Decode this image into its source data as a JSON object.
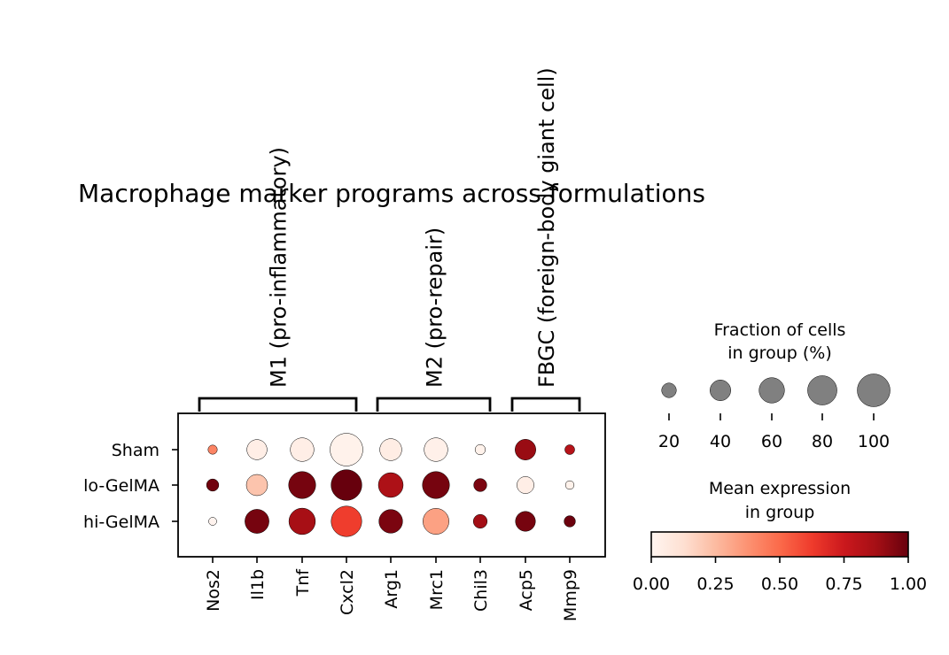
{
  "chart_data": {
    "type": "dotplot",
    "title": "Macrophage marker programs across formulations",
    "genes": [
      "Nos2",
      "Il1b",
      "Tnf",
      "Cxcl2",
      "Arg1",
      "Mrc1",
      "Chil3",
      "Acp5",
      "Mmp9"
    ],
    "groups": [
      "Sham",
      "lo-GelMA",
      "hi-GelMA"
    ],
    "gene_groups": [
      {
        "label": "M1 (pro-inflammatory)",
        "genes": [
          "Nos2",
          "Il1b",
          "Tnf",
          "Cxcl2"
        ]
      },
      {
        "label": "M2 (pro-repair)",
        "genes": [
          "Arg1",
          "Mrc1",
          "Chil3"
        ]
      },
      {
        "label": "FBGC (foreign-body giant cell)",
        "genes": [
          "Acp5",
          "Mmp9"
        ]
      }
    ],
    "fraction_of_cells_pct": [
      [
        8,
        38,
        52,
        100,
        45,
        52,
        10,
        40,
        9
      ],
      [
        14,
        42,
        68,
        88,
        57,
        68,
        16,
        27,
        7
      ],
      [
        6,
        54,
        65,
        87,
        52,
        63,
        18,
        37,
        12
      ]
    ],
    "mean_expression": [
      [
        0.42,
        0.04,
        0.04,
        0.02,
        0.05,
        0.03,
        0.02,
        0.9,
        0.82
      ],
      [
        0.98,
        0.22,
        0.97,
        1.0,
        0.85,
        0.97,
        0.96,
        0.04,
        0.02
      ],
      [
        0.01,
        0.97,
        0.87,
        0.62,
        0.96,
        0.33,
        0.88,
        0.97,
        0.99
      ]
    ],
    "size_legend": {
      "title": "Fraction of cells\nin group (%)",
      "values": [
        20,
        40,
        60,
        80,
        100
      ],
      "labels": [
        "20",
        "40",
        "60",
        "80",
        "100"
      ]
    },
    "colorbar": {
      "title": "Mean expression\nin group",
      "colormap": "Reds",
      "range": [
        0,
        1
      ],
      "ticks": [
        "0.00",
        "0.25",
        "0.50",
        "0.75",
        "1.00"
      ]
    },
    "colors": {
      "reds": [
        "#fff5f0",
        "#fee0d2",
        "#fcbba1",
        "#fc9272",
        "#fb6a4a",
        "#ef3b2c",
        "#cb181d",
        "#a50f15",
        "#67000d"
      ],
      "size_legend_dot": "#808080",
      "axis": "#000000"
    }
  }
}
